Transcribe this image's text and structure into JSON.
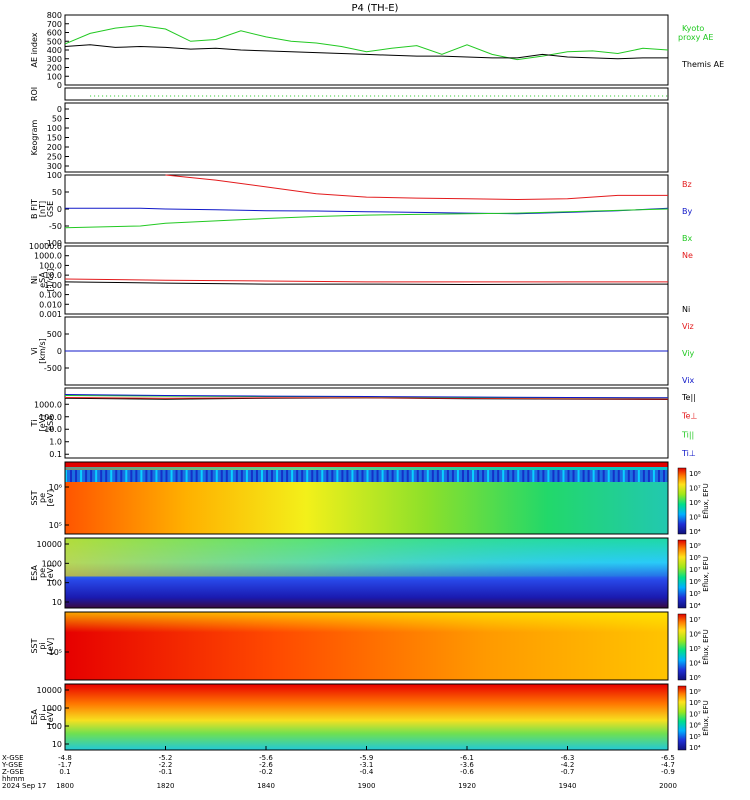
{
  "title": "P4 (TH-E)",
  "colors": {
    "red": "#e31a1c",
    "green": "#22c922",
    "blue": "#1018c8",
    "black": "#000000",
    "cyan": "#00bcd4"
  },
  "chart_data": [
    {
      "type": "line",
      "id": "ae",
      "ylabel": "AE index",
      "yticks": [
        "0",
        "100",
        "200",
        "300",
        "400",
        "500",
        "600",
        "700",
        "800"
      ],
      "ylim": [
        0,
        800
      ],
      "x": [
        1800,
        1805,
        1810,
        1815,
        1820,
        1825,
        1830,
        1835,
        1840,
        1845,
        1850,
        1855,
        1900,
        1905,
        1910,
        1915,
        1920,
        1925,
        1930,
        1935,
        1940,
        1945,
        1950,
        1955,
        2000
      ],
      "series": [
        {
          "name": "Kyoto proxy AE",
          "color": "green",
          "values": [
            470,
            590,
            650,
            680,
            640,
            500,
            520,
            620,
            550,
            500,
            480,
            440,
            380,
            420,
            450,
            350,
            460,
            350,
            290,
            330,
            380,
            390,
            360,
            420,
            400
          ]
        },
        {
          "name": "Themis AE",
          "color": "black",
          "values": [
            440,
            460,
            430,
            440,
            430,
            410,
            420,
            400,
            390,
            380,
            370,
            360,
            350,
            340,
            330,
            330,
            320,
            310,
            310,
            350,
            320,
            310,
            300,
            310,
            310
          ]
        }
      ],
      "legend": [
        "Kyoto",
        "proxy AE",
        "Themis AE"
      ]
    },
    {
      "type": "line",
      "id": "roi",
      "ylabel": "ROI",
      "x": [
        1805,
        2000
      ],
      "series": [
        {
          "color": "green",
          "values": [
            0,
            0
          ]
        }
      ]
    },
    {
      "type": "heatmap",
      "id": "keogram",
      "ylabel": "Keogram",
      "yticks": [
        "0",
        "50",
        "100",
        "150",
        "200",
        "250",
        "300"
      ],
      "ylim": [
        0,
        300
      ]
    },
    {
      "type": "line",
      "id": "bfit",
      "ylabel": "B FIT",
      "ylabel2": "GSE",
      "ylabel3": "[nT]",
      "yticks": [
        "-100",
        "-50",
        "0",
        "50",
        "100"
      ],
      "ylim": [
        -100,
        100
      ],
      "x": [
        1800,
        1815,
        1820,
        1830,
        1840,
        1850,
        1900,
        1910,
        1920,
        1930,
        1940,
        1950,
        2000
      ],
      "series": [
        {
          "name": "Bz",
          "color": "red",
          "values": [
            null,
            null,
            100,
            85,
            65,
            45,
            35,
            32,
            30,
            28,
            30,
            40,
            40
          ]
        },
        {
          "name": "By",
          "color": "blue",
          "values": [
            2,
            2,
            0,
            -2,
            -5,
            -6,
            -8,
            -10,
            -12,
            -14,
            -10,
            -5,
            2
          ]
        },
        {
          "name": "Bx",
          "color": "green",
          "values": [
            -55,
            -50,
            -42,
            -35,
            -28,
            -22,
            -18,
            -16,
            -14,
            -12,
            -8,
            -4,
            0
          ]
        }
      ]
    },
    {
      "type": "line",
      "id": "ni",
      "ylabel": "Ni",
      "ylabel2": "[1/cc]",
      "ylabel3": "eSA",
      "yticks": [
        "10000.0",
        "1000.0",
        "100.0",
        "10.0",
        "1.00",
        "0.100",
        "0.010",
        "0.001"
      ],
      "ylim": [
        0.001,
        10000
      ],
      "log": true,
      "x": [
        1800,
        1820,
        1840,
        1900,
        1920,
        1940,
        2000
      ],
      "series": [
        {
          "name": "Ne",
          "color": "red",
          "values": [
            4,
            3,
            2.5,
            2,
            2,
            2,
            2
          ]
        },
        {
          "name": "Ni",
          "color": "black",
          "values": [
            2,
            1.5,
            1.2,
            1.2,
            1.1,
            1.2,
            1.2
          ]
        }
      ]
    },
    {
      "type": "line",
      "id": "vi",
      "ylabel": "Vi",
      "ylabel2": "[km/s]",
      "yticks": [
        "-500",
        "0",
        "500"
      ],
      "ylim": [
        -1000,
        1000
      ],
      "x": [
        1800,
        2000
      ],
      "series": [
        {
          "name": "Viz",
          "color": "red",
          "values": [
            0,
            0
          ]
        },
        {
          "name": "Viy",
          "color": "green",
          "values": [
            0,
            0
          ]
        },
        {
          "name": "Vix",
          "color": "blue",
          "values": [
            0,
            0
          ]
        }
      ]
    },
    {
      "type": "line",
      "id": "ti",
      "ylabel": "Ti",
      "ylabel2": "eSA",
      "ylabel3": "[eV]",
      "yticks": [
        "1000.0",
        "100.0",
        "10.0",
        "1.0",
        "0.1"
      ],
      "ylim": [
        0.05,
        20000
      ],
      "log": true,
      "x": [
        1800,
        1820,
        1840,
        1900,
        1920,
        1940,
        2000
      ],
      "series": [
        {
          "name": "Te||",
          "color": "black",
          "values": [
            3000,
            2500,
            3000,
            3200,
            2800,
            2600,
            2400
          ]
        },
        {
          "name": "Te⊥",
          "color": "red",
          "values": [
            3500,
            3000,
            3300,
            3300,
            3000,
            2800,
            2600
          ]
        },
        {
          "name": "Ti||",
          "color": "green",
          "values": [
            5000,
            4500,
            4200,
            4000,
            3500,
            3300,
            3200
          ]
        },
        {
          "name": "Ti⊥",
          "color": "blue",
          "values": [
            6000,
            5000,
            4500,
            4200,
            3800,
            3500,
            3300
          ]
        }
      ]
    },
    {
      "type": "heatmap",
      "id": "sst-e",
      "ylabel": "SST",
      "ylabel2": "[eV]",
      "ylabel3": "pe",
      "yticks": [
        "10⁶",
        "10⁵"
      ],
      "cbar": [
        "10⁸",
        "10⁷",
        "10⁶",
        "10⁵",
        "10⁴"
      ],
      "cbar_label": "Eflux, EFU"
    },
    {
      "type": "heatmap",
      "id": "esa-e",
      "ylabel": "ESA",
      "ylabel2": "[eV]",
      "ylabel3": "pe",
      "yticks": [
        "10000",
        "1000",
        "100",
        "10"
      ],
      "cbar": [
        "10⁹",
        "10⁸",
        "10⁷",
        "10⁶",
        "10⁵",
        "10⁴"
      ],
      "cbar_label": "Eflux, EFU"
    },
    {
      "type": "heatmap",
      "id": "sst-i",
      "ylabel": "SST",
      "ylabel2": "[eV]",
      "ylabel3": "pi",
      "yticks": [
        "10⁵"
      ],
      "cbar": [
        "10⁷",
        "10⁶",
        "10⁵",
        "10⁴",
        "10⁶"
      ],
      "cbar_label": "Eflux, EFU"
    },
    {
      "type": "heatmap",
      "id": "esa-i",
      "ylabel": "ESA",
      "ylabel2": "[eV]",
      "ylabel3": "pi",
      "yticks": [
        "10000",
        "1000",
        "100",
        "10"
      ],
      "cbar": [
        "10⁹",
        "10⁸",
        "10⁷",
        "10⁶",
        "10⁵",
        "10⁴"
      ],
      "cbar_label": "Eflux, EFU"
    }
  ],
  "xaxis": {
    "ticks": [
      "1800",
      "1820",
      "1840",
      "1900",
      "1920",
      "1940",
      "2000"
    ],
    "row_labels": [
      "X-GSE",
      "Y-GSE",
      "Z-GSE",
      "hhmm",
      "2024 Sep 17"
    ],
    "rows": [
      [
        "-4.8",
        "-5.2",
        "-5.6",
        "-5.9",
        "-6.1",
        "-6.3",
        "-6.5"
      ],
      [
        "-1.7",
        "-2.2",
        "-2.6",
        "-3.1",
        "-3.6",
        "-4.2",
        "-4.7"
      ],
      [
        "0.1",
        "-0.1",
        "-0.2",
        "-0.4",
        "-0.6",
        "-0.7",
        "-0.9"
      ]
    ]
  }
}
